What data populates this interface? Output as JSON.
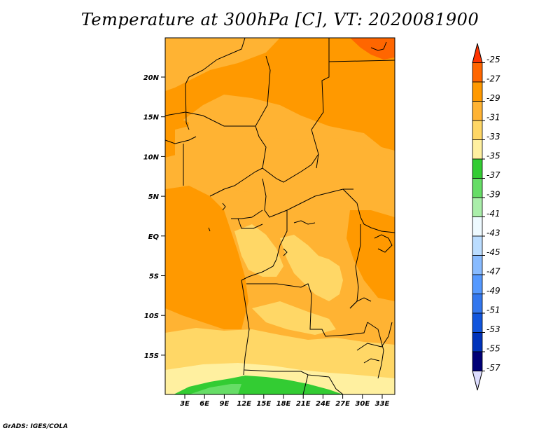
{
  "title": "Temperature at 300hPa [C], VT: 2020081900",
  "credit": "GrADS: IGES/COLA",
  "map": {
    "lat_labels": [
      "20N",
      "15N",
      "10N",
      "5N",
      "EQ",
      "5S",
      "10S",
      "15S"
    ],
    "lon_labels": [
      "3E",
      "6E",
      "9E",
      "12E",
      "15E",
      "18E",
      "21E",
      "24E",
      "27E",
      "30E",
      "33E"
    ]
  },
  "legend": {
    "labels": [
      "-25",
      "-27",
      "-29",
      "-31",
      "-33",
      "-35",
      "-37",
      "-39",
      "-41",
      "-43",
      "-45",
      "-47",
      "-49",
      "-51",
      "-53",
      "-55",
      "-57"
    ],
    "colors": [
      "#ff3300",
      "#ff6600",
      "#ff9900",
      "#ffb333",
      "#ffd766",
      "#fff0a0",
      "#33cc33",
      "#66dd66",
      "#aaeeaa",
      "#eefaff",
      "#bbddff",
      "#88bbff",
      "#5599ff",
      "#3377ee",
      "#1155dd",
      "#0033bb",
      "#000077",
      "#ddddff"
    ]
  },
  "colors": {
    "t_m27": "#ff6600",
    "t_m29": "#ff9900",
    "t_m31": "#ffb333",
    "t_m33": "#ffd766",
    "t_m35": "#fff0a0",
    "t_m37": "#33cc33",
    "t_m39": "#66dd66"
  }
}
